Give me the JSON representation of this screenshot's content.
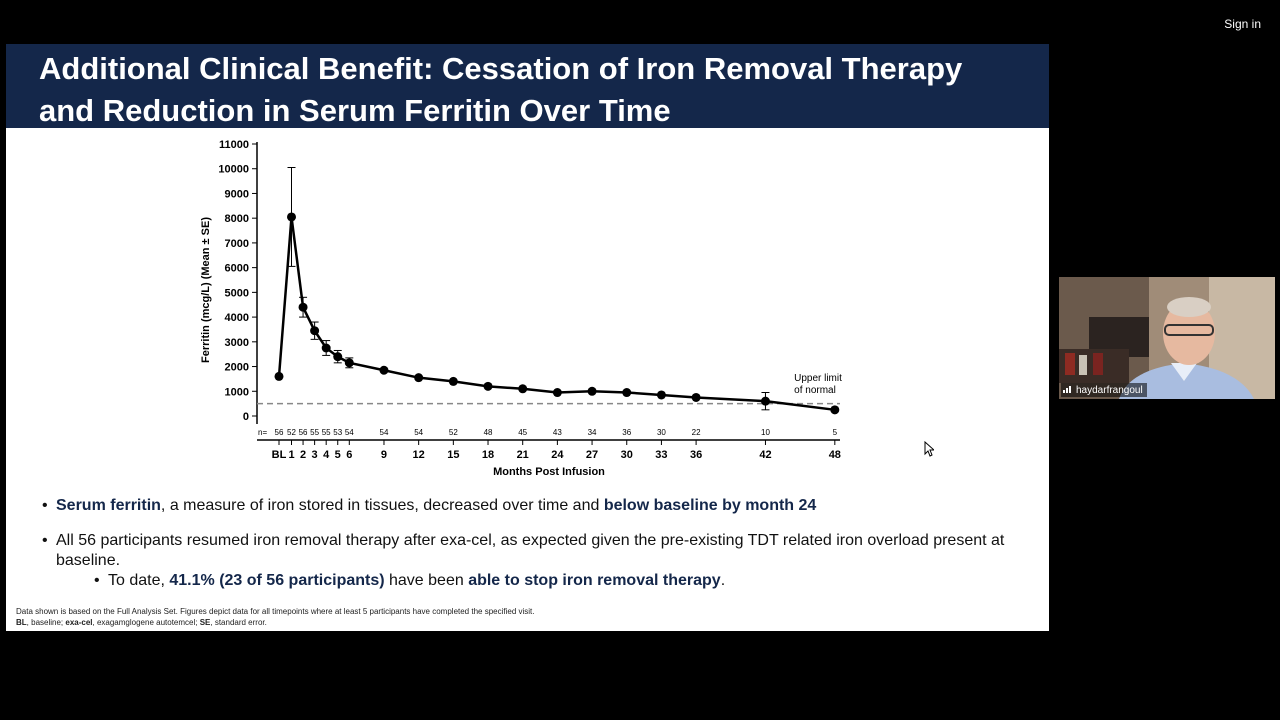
{
  "top": {
    "sign_in": "Sign in"
  },
  "slide": {
    "title": "Additional Clinical Benefit: Cessation of Iron Removal Therapy and Reduction in Serum Ferritin Over Time",
    "bullets": [
      {
        "parts": [
          {
            "text": "Serum ferritin",
            "hl": true
          },
          {
            "text": ", a measure of iron stored in tissues, decreased over time and ",
            "hl": false
          },
          {
            "text": "below baseline by month 24",
            "hl": true
          }
        ]
      },
      {
        "parts": [
          {
            "text": "All 56 participants resumed iron removal therapy after exa-cel, as expected given the pre-existing TDT related iron overload present at baseline.",
            "hl": false
          }
        ]
      }
    ],
    "sub_bullet": {
      "parts": [
        {
          "text": "To date, ",
          "hl": false
        },
        {
          "text": "41.1% (23 of 56 participants)",
          "hl": true
        },
        {
          "text": " have been ",
          "hl": false
        },
        {
          "text": "able to stop iron removal therapy",
          "hl": true
        },
        {
          "text": ".",
          "hl": false
        }
      ]
    },
    "footnote_line1": "Data shown is based on the Full Analysis Set. Figures depict data for all timepoints where at least 5 participants have completed the specified visit.",
    "footnote_line2_parts": [
      {
        "text": "BL",
        "bold": true
      },
      {
        "text": ", baseline; ",
        "bold": false
      },
      {
        "text": "exa-cel",
        "bold": true
      },
      {
        "text": ", exagamglogene autotemcel; ",
        "bold": false
      },
      {
        "text": "SE",
        "bold": true
      },
      {
        "text": ", standard error.",
        "bold": false
      }
    ]
  },
  "video": {
    "participant_name": "haydarfrangoul"
  },
  "controls": [
    "prev-icon",
    "pen-icon",
    "search-icon",
    "captions-icon",
    "menu-icon",
    "more-icon",
    "next-icon"
  ],
  "colors": {
    "header_bg": "#14274a",
    "highlight": "#14274a",
    "line": "#000000",
    "uln_line": "#888888"
  },
  "chart_data": {
    "type": "line",
    "xlabel": "Months Post Infusion",
    "ylabel": "Ferritin (mcg/L) (Mean ± SE)",
    "ylim": [
      0,
      11000
    ],
    "y_ticks": [
      0,
      1000,
      2000,
      3000,
      4000,
      5000,
      6000,
      7000,
      8000,
      9000,
      10000,
      11000
    ],
    "x_ticks": [
      "BL",
      "1",
      "2",
      "3",
      "4",
      "5",
      "6",
      "9",
      "12",
      "15",
      "18",
      "21",
      "24",
      "27",
      "30",
      "33",
      "36",
      "42",
      "48"
    ],
    "n_label": "n=",
    "n_values": [
      56,
      52,
      56,
      55,
      55,
      53,
      54,
      54,
      54,
      52,
      48,
      45,
      43,
      34,
      36,
      30,
      22,
      10,
      5
    ],
    "series": [
      {
        "x": [
          "BL",
          1,
          2,
          3,
          4,
          5,
          6,
          9,
          12,
          15,
          18,
          21,
          24,
          27,
          30,
          33,
          36,
          42,
          48
        ],
        "values": [
          1600,
          8050,
          4400,
          3450,
          2750,
          2400,
          2150,
          1850,
          1550,
          1400,
          1200,
          1100,
          950,
          1000,
          950,
          850,
          750,
          600,
          250
        ],
        "error": [
          0,
          2000,
          400,
          350,
          300,
          250,
          200,
          0,
          0,
          0,
          0,
          0,
          0,
          0,
          0,
          0,
          0,
          350,
          0
        ]
      }
    ],
    "reference_line": {
      "value": 500,
      "label_line1": "Upper limit",
      "label_line2": "of normal"
    },
    "grid": false
  }
}
